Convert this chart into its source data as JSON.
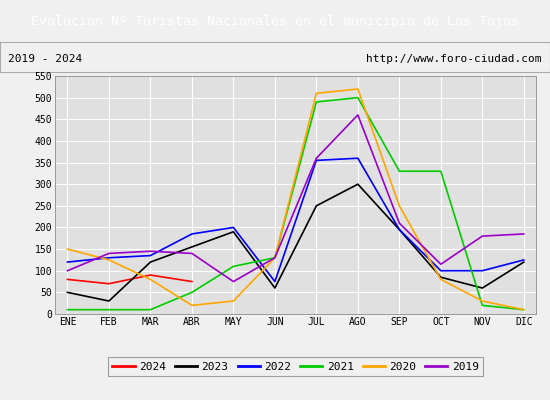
{
  "title": "Evolucion Nº Turistas Nacionales en el municipio de Los Tojos",
  "subtitle_left": "2019 - 2024",
  "subtitle_right": "http://www.foro-ciudad.com",
  "title_bg_color": "#4472c4",
  "title_text_color": "#ffffff",
  "months": [
    "ENE",
    "FEB",
    "MAR",
    "ABR",
    "MAY",
    "JUN",
    "JUL",
    "AGO",
    "SEP",
    "OCT",
    "NOV",
    "DIC"
  ],
  "ylim": [
    0,
    550
  ],
  "yticks": [
    0,
    50,
    100,
    150,
    200,
    250,
    300,
    350,
    400,
    450,
    500,
    550
  ],
  "series": {
    "2024": {
      "color": "#ff0000",
      "data": [
        80,
        70,
        90,
        75,
        null,
        null,
        null,
        null,
        null,
        null,
        null,
        null
      ]
    },
    "2023": {
      "color": "#000000",
      "data": [
        50,
        30,
        120,
        155,
        190,
        60,
        250,
        300,
        195,
        85,
        60,
        120
      ]
    },
    "2022": {
      "color": "#0000ff",
      "data": [
        120,
        130,
        135,
        185,
        200,
        75,
        355,
        360,
        195,
        100,
        100,
        125
      ]
    },
    "2021": {
      "color": "#00cc00",
      "data": [
        10,
        10,
        10,
        50,
        110,
        130,
        490,
        500,
        330,
        330,
        20,
        10
      ]
    },
    "2020": {
      "color": "#ffa500",
      "data": [
        150,
        125,
        80,
        20,
        30,
        130,
        510,
        520,
        250,
        80,
        30,
        10
      ]
    },
    "2019": {
      "color": "#9900cc",
      "data": [
        100,
        140,
        145,
        140,
        75,
        130,
        360,
        460,
        210,
        115,
        180,
        185
      ]
    }
  },
  "legend_order": [
    "2024",
    "2023",
    "2022",
    "2021",
    "2020",
    "2019"
  ],
  "bg_color": "#f0f0f0",
  "plot_bg_color": "#e0e0e0",
  "grid_color": "#ffffff",
  "subtitle_bg_color": "#f0f0f0",
  "subtitle_border_color": "#aaaaaa"
}
